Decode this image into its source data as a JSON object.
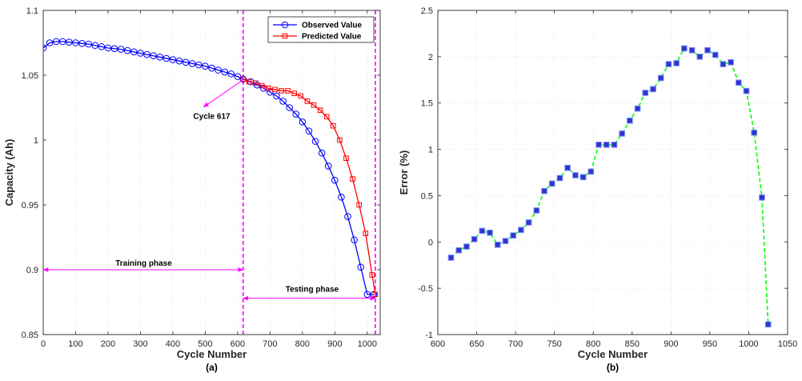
{
  "chart_data": [
    {
      "type": "line",
      "panel_label": "(a)",
      "xlabel": "Cycle Number",
      "ylabel": "Capacity (Ah)",
      "xlim": [
        0,
        1040
      ],
      "ylim": [
        0.85,
        1.1
      ],
      "xticks": [
        0,
        100,
        200,
        300,
        400,
        500,
        600,
        700,
        800,
        900,
        1000
      ],
      "yticks": [
        0.85,
        0.9,
        0.95,
        1,
        1.05,
        1.1
      ],
      "ytick_labels": [
        "0.85",
        "0.9",
        "0.95",
        "1",
        "1.05",
        "1.1"
      ],
      "grid": true,
      "legend": "top-right",
      "series": [
        {
          "name": "Observed Value",
          "color": "#0000ff",
          "marker": "circle",
          "x": [
            0,
            20,
            40,
            60,
            80,
            100,
            120,
            140,
            160,
            180,
            200,
            220,
            240,
            260,
            280,
            300,
            320,
            340,
            360,
            380,
            400,
            420,
            440,
            460,
            480,
            500,
            520,
            540,
            560,
            580,
            600,
            617,
            640,
            660,
            680,
            700,
            720,
            740,
            760,
            780,
            800,
            820,
            840,
            860,
            880,
            900,
            920,
            940,
            960,
            980,
            1000,
            1020
          ],
          "y": [
            1.071,
            1.075,
            1.076,
            1.076,
            1.0755,
            1.075,
            1.0745,
            1.074,
            1.073,
            1.072,
            1.071,
            1.0705,
            1.07,
            1.069,
            1.068,
            1.067,
            1.066,
            1.065,
            1.064,
            1.063,
            1.062,
            1.061,
            1.06,
            1.059,
            1.058,
            1.057,
            1.0555,
            1.054,
            1.0525,
            1.051,
            1.049,
            1.047,
            1.045,
            1.0425,
            1.04,
            1.037,
            1.034,
            1.03,
            1.025,
            1.02,
            1.014,
            1.007,
            0.999,
            0.99,
            0.98,
            0.969,
            0.956,
            0.941,
            0.923,
            0.902,
            0.881,
            0.881
          ]
        },
        {
          "name": "Predicted Value",
          "color": "#ff0000",
          "marker": "square",
          "x": [
            617,
            635,
            655,
            675,
            695,
            715,
            735,
            755,
            775,
            795,
            815,
            835,
            855,
            875,
            895,
            915,
            935,
            955,
            975,
            995,
            1015,
            1025
          ],
          "y": [
            1.047,
            1.045,
            1.044,
            1.042,
            1.04,
            1.039,
            1.038,
            1.038,
            1.036,
            1.034,
            1.03,
            1.027,
            1.023,
            1.018,
            1.011,
            1.0,
            0.986,
            0.97,
            0.95,
            0.928,
            0.896,
            0.881
          ]
        }
      ],
      "annotations": [
        {
          "text": "Cycle 617",
          "x": 520,
          "y": 1.0165
        },
        {
          "text": "Training phase",
          "x": 310,
          "y": 0.903
        },
        {
          "text": "Testing phase",
          "x": 830,
          "y": 0.883
        }
      ],
      "vlines": [
        {
          "x": 617,
          "color": "#ff00ff",
          "style": "dashed"
        },
        {
          "x": 1025,
          "color": "#ff00ff",
          "style": "dashed"
        }
      ],
      "arrows": [
        {
          "from": [
            0,
            0.9
          ],
          "to": [
            617,
            0.9
          ],
          "kind": "double",
          "color": "#ff00ff"
        },
        {
          "from": [
            617,
            0.878
          ],
          "to": [
            1025,
            0.878
          ],
          "kind": "double",
          "color": "#ff00ff"
        },
        {
          "from": [
            617,
            1.0465
          ],
          "to": [
            495,
            1.0255
          ],
          "kind": "single",
          "color": "#ff00ff"
        }
      ]
    },
    {
      "type": "line",
      "panel_label": "(b)",
      "xlabel": "Cycle Number",
      "ylabel": "Error (%)",
      "xlim": [
        600,
        1050
      ],
      "ylim": [
        -1,
        2.5
      ],
      "xticks": [
        600,
        650,
        700,
        750,
        800,
        850,
        900,
        950,
        1000,
        1050
      ],
      "yticks": [
        -1,
        -0.5,
        0,
        0.5,
        1,
        1.5,
        2,
        2.5
      ],
      "ytick_labels": [
        "-1",
        "-0.5",
        "0",
        "0.5",
        "1",
        "1.5",
        "2",
        "2.5"
      ],
      "grid": true,
      "series": [
        {
          "marker": "square",
          "color": "#00ff00",
          "marker_color": "#3333cc",
          "style": "dashed",
          "x": [
            617,
            627,
            637,
            647,
            657,
            667,
            677,
            687,
            697,
            707,
            717,
            727,
            737,
            747,
            757,
            767,
            777,
            787,
            797,
            807,
            817,
            827,
            837,
            847,
            857,
            867,
            877,
            887,
            897,
            907,
            917,
            927,
            937,
            947,
            957,
            967,
            977,
            987,
            997,
            1007,
            1017,
            1025
          ],
          "y": [
            -0.17,
            -0.09,
            -0.05,
            0.03,
            0.12,
            0.1,
            -0.03,
            0.01,
            0.07,
            0.13,
            0.21,
            0.34,
            0.55,
            0.63,
            0.69,
            0.8,
            0.72,
            0.7,
            0.76,
            1.05,
            1.05,
            1.05,
            1.17,
            1.31,
            1.44,
            1.61,
            1.65,
            1.77,
            1.92,
            1.93,
            2.09,
            2.07,
            2.0,
            2.07,
            2.02,
            1.92,
            1.94,
            1.72,
            1.63,
            1.18,
            0.48,
            -0.89
          ]
        }
      ]
    }
  ]
}
